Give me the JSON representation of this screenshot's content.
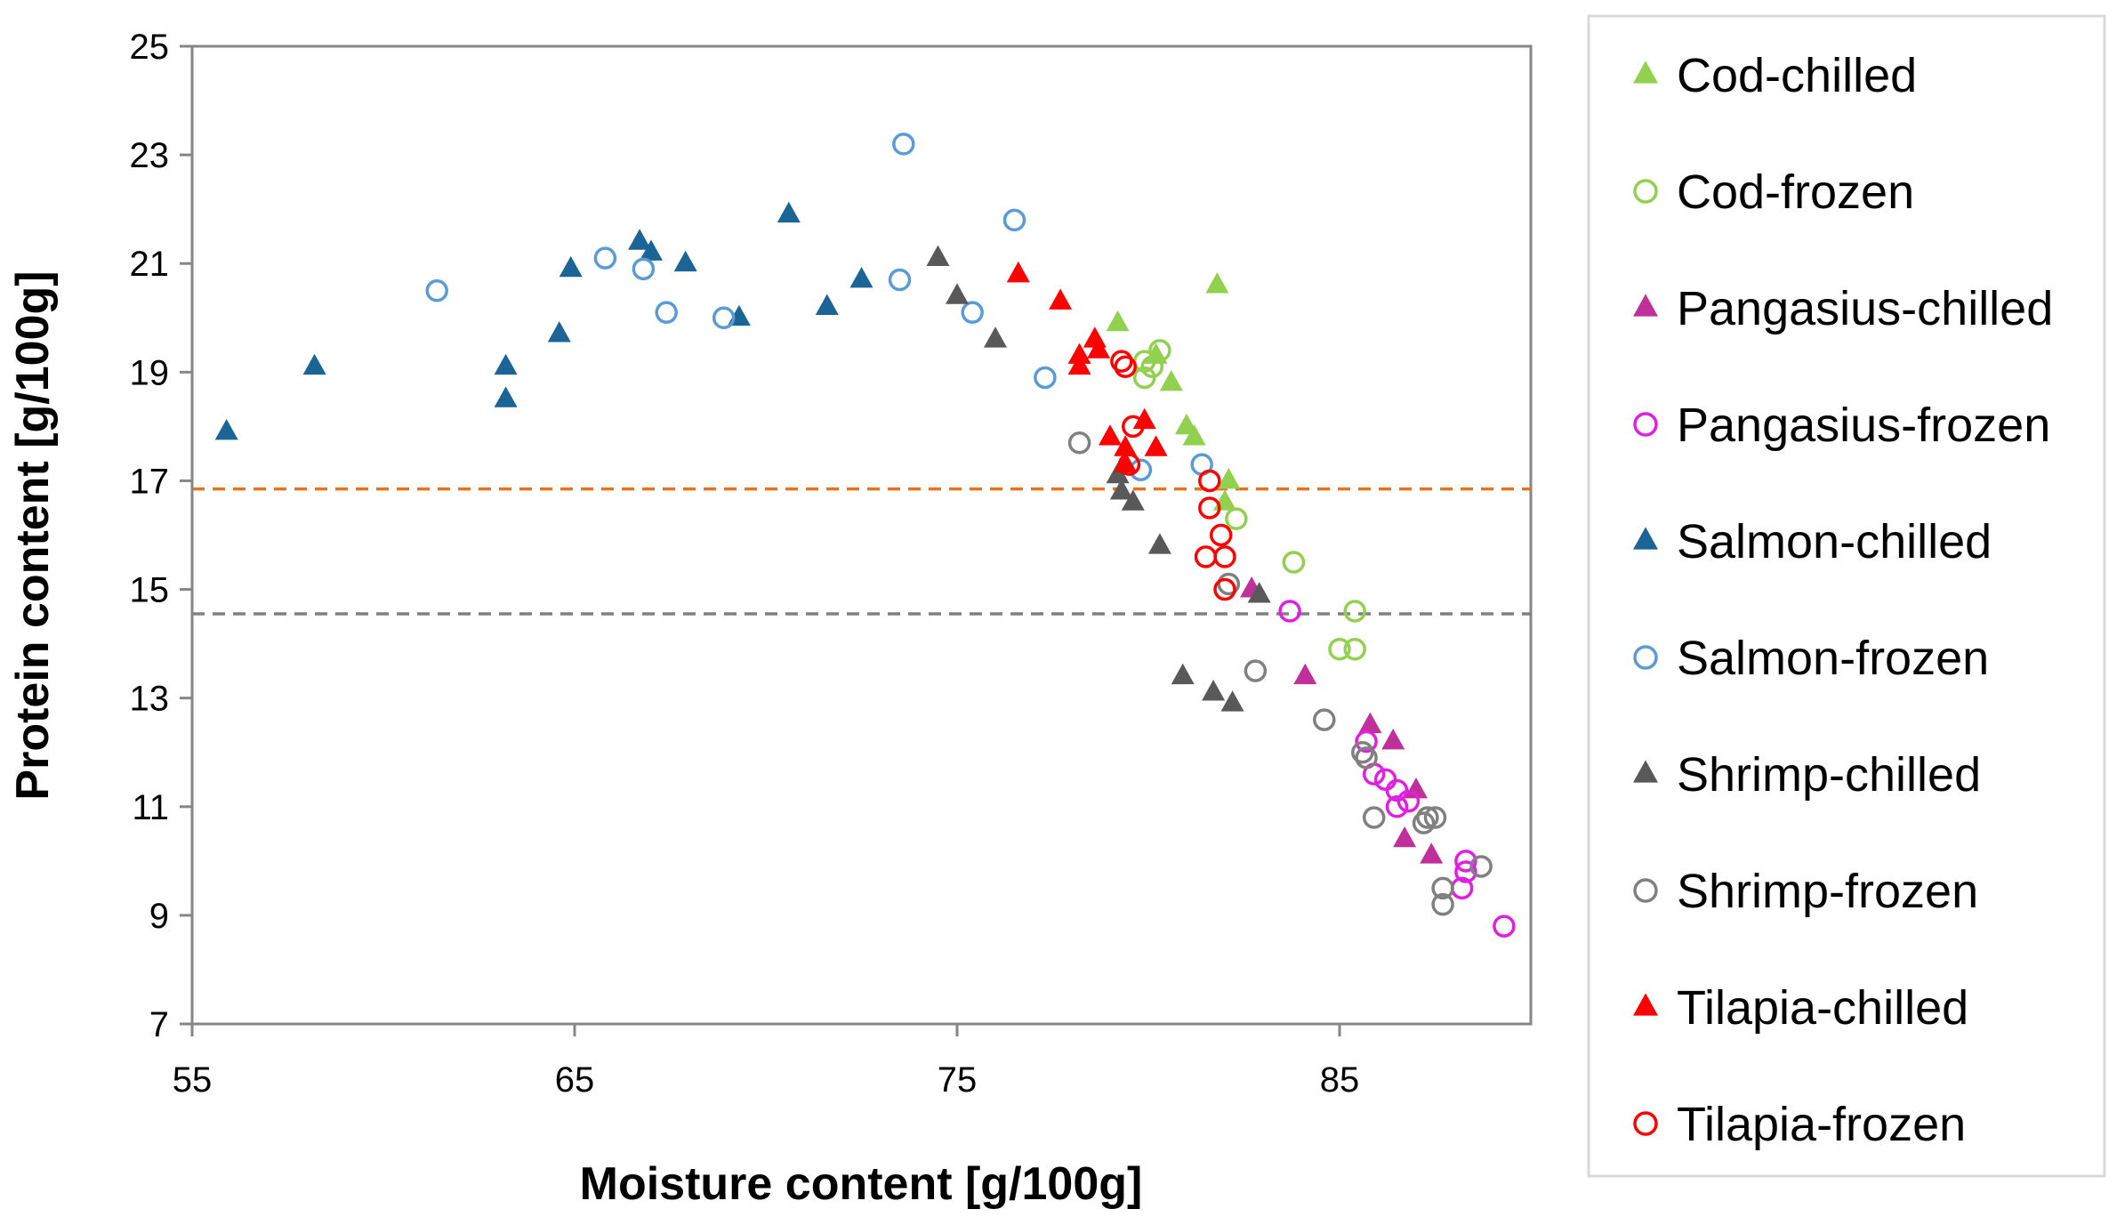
{
  "chart_data": {
    "type": "scatter",
    "xlabel": "Moisture content [g/100g]",
    "ylabel": "Protein content [g/100g]",
    "xlim": [
      55,
      90
    ],
    "ylim": [
      7,
      25
    ],
    "x_ticks": [
      55,
      65,
      75,
      85
    ],
    "y_ticks": [
      7,
      9,
      11,
      13,
      15,
      17,
      19,
      21,
      23,
      25
    ],
    "grid": false,
    "legend_position": "right",
    "reference_lines": [
      {
        "name": "orange-dashed-line",
        "y": 16.85,
        "color": "#e8731f"
      },
      {
        "name": "gray-dashed-line",
        "y": 14.55,
        "color": "#808080"
      }
    ],
    "series": [
      {
        "name": "Cod-chilled",
        "marker": "triangle",
        "filled": true,
        "color": "#92d050",
        "points": [
          [
            79.2,
            19.9
          ],
          [
            80.2,
            19.3
          ],
          [
            80.6,
            18.8
          ],
          [
            81.0,
            18.0
          ],
          [
            81.2,
            17.8
          ],
          [
            81.8,
            20.6
          ],
          [
            82.1,
            17.0
          ],
          [
            82.0,
            16.6
          ]
        ]
      },
      {
        "name": "Cod-frozen",
        "marker": "circle",
        "filled": false,
        "color": "#92d050",
        "points": [
          [
            79.9,
            19.2
          ],
          [
            80.1,
            19.1
          ],
          [
            80.3,
            19.4
          ],
          [
            79.9,
            18.9
          ],
          [
            82.3,
            16.3
          ],
          [
            83.8,
            15.5
          ],
          [
            85.4,
            14.6
          ],
          [
            85.0,
            13.9
          ],
          [
            85.4,
            13.9
          ]
        ]
      },
      {
        "name": "Pangasius-chilled",
        "marker": "triangle",
        "filled": true,
        "color": "#c0309a",
        "points": [
          [
            82.7,
            15.0
          ],
          [
            84.1,
            13.4
          ],
          [
            85.8,
            12.5
          ],
          [
            86.4,
            12.2
          ],
          [
            87.0,
            11.3
          ],
          [
            86.7,
            10.4
          ],
          [
            87.4,
            10.1
          ]
        ]
      },
      {
        "name": "Pangasius-frozen",
        "marker": "circle",
        "filled": false,
        "color": "#e020e0",
        "points": [
          [
            83.7,
            14.6
          ],
          [
            85.7,
            12.2
          ],
          [
            85.9,
            11.6
          ],
          [
            86.2,
            11.5
          ],
          [
            86.5,
            11.3
          ],
          [
            86.8,
            11.1
          ],
          [
            86.5,
            11.0
          ],
          [
            88.3,
            10.0
          ],
          [
            88.3,
            9.8
          ],
          [
            88.2,
            9.5
          ],
          [
            89.3,
            8.8
          ]
        ]
      },
      {
        "name": "Salmon-chilled",
        "marker": "triangle",
        "filled": true,
        "color": "#1a6496",
        "points": [
          [
            55.9,
            17.9
          ],
          [
            58.2,
            19.1
          ],
          [
            63.2,
            19.1
          ],
          [
            63.2,
            18.5
          ],
          [
            64.6,
            19.7
          ],
          [
            64.9,
            20.9
          ],
          [
            66.7,
            21.4
          ],
          [
            67.0,
            21.2
          ],
          [
            67.9,
            21.0
          ],
          [
            69.3,
            20.0
          ],
          [
            70.6,
            21.9
          ],
          [
            71.6,
            20.2
          ],
          [
            72.5,
            20.7
          ]
        ]
      },
      {
        "name": "Salmon-frozen",
        "marker": "circle",
        "filled": false,
        "color": "#5b9bd5",
        "points": [
          [
            61.4,
            20.5
          ],
          [
            65.8,
            21.1
          ],
          [
            66.8,
            20.9
          ],
          [
            67.4,
            20.1
          ],
          [
            68.9,
            20.0
          ],
          [
            73.5,
            20.7
          ],
          [
            73.6,
            23.2
          ],
          [
            75.4,
            20.1
          ],
          [
            76.5,
            21.8
          ],
          [
            77.3,
            18.9
          ],
          [
            79.8,
            17.2
          ],
          [
            81.4,
            17.3
          ]
        ]
      },
      {
        "name": "Shrimp-chilled",
        "marker": "triangle",
        "filled": true,
        "color": "#595959",
        "points": [
          [
            74.5,
            21.1
          ],
          [
            75.0,
            20.4
          ],
          [
            76.0,
            19.6
          ],
          [
            79.2,
            17.1
          ],
          [
            79.3,
            16.8
          ],
          [
            79.6,
            16.6
          ],
          [
            80.3,
            15.8
          ],
          [
            80.9,
            13.4
          ],
          [
            81.7,
            13.1
          ],
          [
            82.2,
            12.9
          ],
          [
            82.9,
            14.9
          ]
        ]
      },
      {
        "name": "Shrimp-frozen",
        "marker": "circle",
        "filled": false,
        "color": "#808080",
        "points": [
          [
            78.2,
            17.7
          ],
          [
            82.1,
            15.1
          ],
          [
            82.8,
            13.5
          ],
          [
            84.6,
            12.6
          ],
          [
            85.6,
            12.0
          ],
          [
            85.7,
            11.9
          ],
          [
            85.9,
            10.8
          ],
          [
            87.2,
            10.7
          ],
          [
            87.3,
            10.8
          ],
          [
            87.5,
            10.8
          ],
          [
            87.7,
            9.5
          ],
          [
            88.7,
            9.9
          ],
          [
            87.7,
            9.2
          ]
        ]
      },
      {
        "name": "Tilapia-chilled",
        "marker": "triangle",
        "filled": true,
        "color": "#ff0000",
        "points": [
          [
            76.6,
            20.8
          ],
          [
            77.7,
            20.3
          ],
          [
            78.2,
            19.3
          ],
          [
            78.2,
            19.1
          ],
          [
            78.6,
            19.6
          ],
          [
            78.7,
            19.4
          ],
          [
            79.0,
            17.8
          ],
          [
            79.4,
            17.6
          ],
          [
            79.4,
            17.3
          ],
          [
            79.9,
            18.1
          ],
          [
            80.2,
            17.6
          ]
        ]
      },
      {
        "name": "Tilapia-frozen",
        "marker": "circle",
        "filled": false,
        "color": "#ff0000",
        "points": [
          [
            79.3,
            19.2
          ],
          [
            79.4,
            19.1
          ],
          [
            79.6,
            18.0
          ],
          [
            79.5,
            17.3
          ],
          [
            81.6,
            17.0
          ],
          [
            81.6,
            16.5
          ],
          [
            81.9,
            16.0
          ],
          [
            81.5,
            15.6
          ],
          [
            82.0,
            15.6
          ],
          [
            82.0,
            15.0
          ]
        ]
      }
    ]
  }
}
